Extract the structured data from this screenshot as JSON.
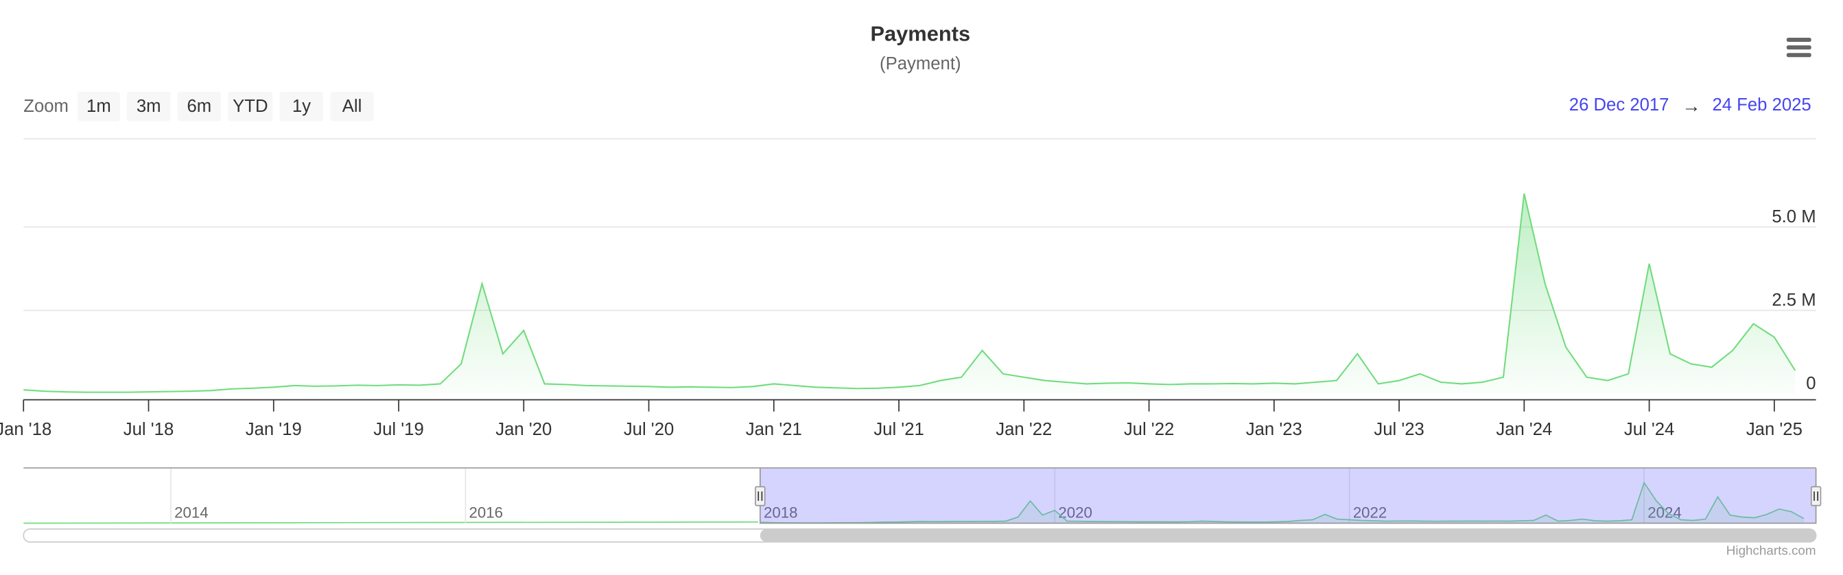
{
  "chart_data": {
    "type": "area",
    "title": "Payments",
    "subtitle": "(Payment)",
    "zoom": {
      "label": "Zoom",
      "buttons": [
        "1m",
        "3m",
        "6m",
        "YTD",
        "1y",
        "All"
      ]
    },
    "range": {
      "from": "26 Dec 2017",
      "separator": "→",
      "to": "24 Feb 2025"
    },
    "color": "#6fdc7c",
    "x": [
      "2018-01",
      "2018-02",
      "2018-03",
      "2018-04",
      "2018-05",
      "2018-06",
      "2018-07",
      "2018-08",
      "2018-09",
      "2018-10",
      "2018-11",
      "2018-12",
      "2019-01",
      "2019-02",
      "2019-03",
      "2019-04",
      "2019-05",
      "2019-06",
      "2019-07",
      "2019-08",
      "2019-09",
      "2019-10",
      "2019-11",
      "2019-12",
      "2020-01",
      "2020-02",
      "2020-03",
      "2020-04",
      "2020-05",
      "2020-06",
      "2020-07",
      "2020-08",
      "2020-09",
      "2020-10",
      "2020-11",
      "2020-12",
      "2021-01",
      "2021-02",
      "2021-03",
      "2021-04",
      "2021-05",
      "2021-06",
      "2021-07",
      "2021-08",
      "2021-09",
      "2021-10",
      "2021-11",
      "2021-12",
      "2022-01",
      "2022-02",
      "2022-03",
      "2022-04",
      "2022-05",
      "2022-06",
      "2022-07",
      "2022-08",
      "2022-09",
      "2022-10",
      "2022-11",
      "2022-12",
      "2023-01",
      "2023-02",
      "2023-03",
      "2023-04",
      "2023-05",
      "2023-06",
      "2023-07",
      "2023-08",
      "2023-09",
      "2023-10",
      "2023-11",
      "2023-12",
      "2024-01",
      "2024-02",
      "2024-03",
      "2024-04",
      "2024-05",
      "2024-06",
      "2024-07",
      "2024-08",
      "2024-09",
      "2024-10",
      "2024-11",
      "2024-12",
      "2025-01",
      "2025-02"
    ],
    "values": [
      120000,
      80000,
      60000,
      50000,
      50000,
      50000,
      60000,
      70000,
      80000,
      100000,
      150000,
      170000,
      200000,
      250000,
      230000,
      240000,
      260000,
      250000,
      270000,
      260000,
      300000,
      900000,
      3300000,
      1200000,
      1900000,
      300000,
      280000,
      250000,
      240000,
      230000,
      220000,
      200000,
      210000,
      200000,
      190000,
      220000,
      300000,
      250000,
      200000,
      180000,
      160000,
      170000,
      200000,
      250000,
      400000,
      500000,
      1300000,
      600000,
      500000,
      400000,
      350000,
      300000,
      320000,
      330000,
      300000,
      280000,
      300000,
      300000,
      310000,
      300000,
      320000,
      300000,
      350000,
      400000,
      1200000,
      300000,
      400000,
      600000,
      350000,
      300000,
      350000,
      500000,
      6000000,
      3300000,
      1400000,
      500000,
      400000,
      600000,
      3900000,
      1200000,
      900000,
      800000,
      1300000,
      2100000,
      1700000,
      700000
    ],
    "xlim": [
      "2018-01",
      "2025-03"
    ],
    "xticks": [
      {
        "value": "2018-01",
        "label": "Jan '18"
      },
      {
        "value": "2018-07",
        "label": "Jul '18"
      },
      {
        "value": "2019-01",
        "label": "Jan '19"
      },
      {
        "value": "2019-07",
        "label": "Jul '19"
      },
      {
        "value": "2020-01",
        "label": "Jan '20"
      },
      {
        "value": "2020-07",
        "label": "Jul '20"
      },
      {
        "value": "2021-01",
        "label": "Jan '21"
      },
      {
        "value": "2021-07",
        "label": "Jul '21"
      },
      {
        "value": "2022-01",
        "label": "Jan '22"
      },
      {
        "value": "2022-07",
        "label": "Jul '22"
      },
      {
        "value": "2023-01",
        "label": "Jan '23"
      },
      {
        "value": "2023-07",
        "label": "Jul '23"
      },
      {
        "value": "2024-01",
        "label": "Jan '24"
      },
      {
        "value": "2024-07",
        "label": "Jul '24"
      },
      {
        "value": "2025-01",
        "label": "Jan '25"
      }
    ],
    "ylim": [
      0,
      7500000
    ],
    "yticks": [
      0,
      {
        "value": 2500000,
        "label": "2.5 M"
      },
      {
        "value": 5000000,
        "label": "5.0 M"
      }
    ],
    "grid": true,
    "navigator": {
      "xlim": [
        "2013-01",
        "2025-03"
      ],
      "xticks": [
        2014,
        2016,
        2018,
        2020,
        2022,
        2024
      ]
    },
    "credits": "Highcharts.com"
  }
}
